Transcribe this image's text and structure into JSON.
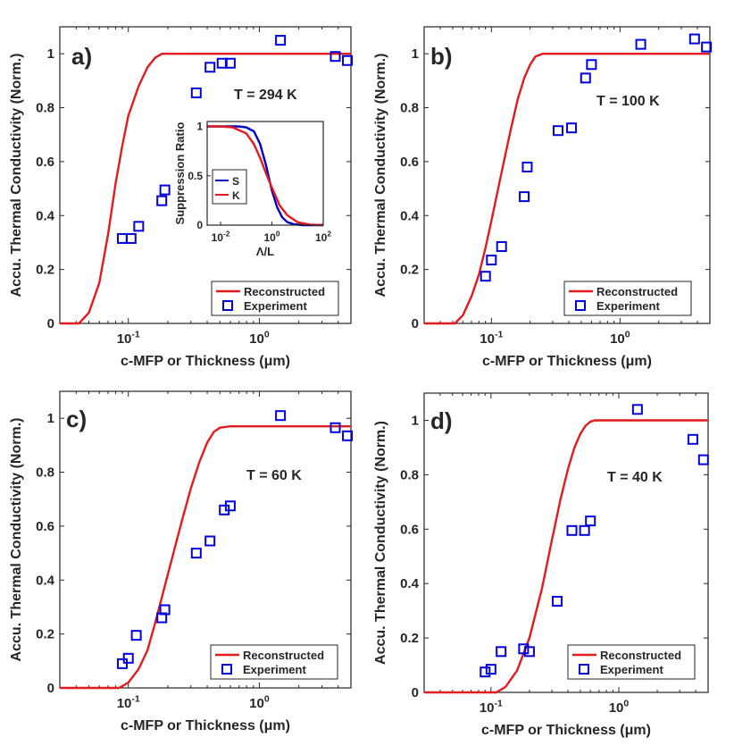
{
  "chart_data": [
    {
      "type": "scatter",
      "panel_label": "a)",
      "annotation": "T = 294 K",
      "xlabel": "c-MFP or Thickness (μm)",
      "ylabel": "Accu. Thermal Conductivity (Norm.)",
      "xscale": "log",
      "xlim": [
        0.03,
        5.0
      ],
      "ylim": [
        0,
        1.1
      ],
      "yticks": [
        "0",
        "0.2",
        "0.4",
        "0.6",
        "0.8",
        "1"
      ],
      "xticks": [
        {
          "base": "10",
          "exp": "-1"
        },
        {
          "base": "10",
          "exp": "0"
        }
      ],
      "legend": [
        "Reconstructed",
        "Experiment"
      ],
      "series": [
        {
          "name": "Reconstructed",
          "kind": "line",
          "color": "#e41a1c",
          "x": [
            0.03,
            0.042,
            0.05,
            0.06,
            0.07,
            0.08,
            0.09,
            0.1,
            0.12,
            0.14,
            0.16,
            0.18,
            0.2,
            0.3,
            1.0,
            5.0
          ],
          "y": [
            0,
            0,
            0.04,
            0.15,
            0.33,
            0.52,
            0.66,
            0.77,
            0.88,
            0.95,
            0.985,
            1.0,
            1.0,
            1.0,
            1.0,
            1.0
          ]
        },
        {
          "name": "Experiment",
          "kind": "marker",
          "color": "#0000e0",
          "x": [
            0.09,
            0.105,
            0.12,
            0.18,
            0.19,
            0.33,
            0.42,
            0.52,
            0.6,
            1.45,
            3.8,
            4.7
          ],
          "y": [
            0.315,
            0.315,
            0.36,
            0.455,
            0.495,
            0.855,
            0.95,
            0.965,
            0.965,
            1.05,
            0.99,
            0.975
          ]
        }
      ],
      "inset": {
        "type": "line",
        "xlabel": "Λ/L",
        "ylabel": "Suppression Ratio",
        "xscale": "log",
        "xlim": [
          0.003,
          100
        ],
        "ylim": [
          0,
          1.05
        ],
        "yticks": [
          "0",
          "0.5",
          "1"
        ],
        "xticks": [
          {
            "base": "10",
            "exp": "-2"
          },
          {
            "base": "10",
            "exp": "0"
          },
          {
            "base": "10",
            "exp": "2"
          }
        ],
        "legend": [
          "S",
          "K"
        ],
        "series": [
          {
            "name": "S",
            "color": "#0000c8",
            "x": [
              0.003,
              0.05,
              0.1,
              0.2,
              0.35,
              0.6,
              1,
              1.6,
              2.5,
              4,
              7,
              15,
              100
            ],
            "y": [
              1,
              1,
              0.99,
              0.95,
              0.82,
              0.6,
              0.35,
              0.18,
              0.08,
              0.03,
              0.01,
              0,
              0
            ]
          },
          {
            "name": "K",
            "color": "#e41a1c",
            "x": [
              0.003,
              0.01,
              0.03,
              0.1,
              0.2,
              0.35,
              0.6,
              1,
              2,
              4,
              10,
              30,
              100
            ],
            "y": [
              1,
              1,
              0.99,
              0.93,
              0.82,
              0.68,
              0.52,
              0.38,
              0.2,
              0.1,
              0.03,
              0.005,
              0
            ]
          }
        ]
      }
    },
    {
      "type": "scatter",
      "panel_label": "b)",
      "annotation": "T = 100 K",
      "xlabel": "c-MFP or Thickness (μm)",
      "ylabel": "Accu. Thermal Conductivity (Norm.)",
      "xscale": "log",
      "xlim": [
        0.03,
        5.0
      ],
      "ylim": [
        0,
        1.1
      ],
      "yticks": [
        "0",
        "0.2",
        "0.4",
        "0.6",
        "0.8",
        "1"
      ],
      "xticks": [
        {
          "base": "10",
          "exp": "-1"
        },
        {
          "base": "10",
          "exp": "0"
        }
      ],
      "legend": [
        "Reconstructed",
        "Experiment"
      ],
      "series": [
        {
          "name": "Reconstructed",
          "kind": "line",
          "color": "#e41a1c",
          "x": [
            0.03,
            0.052,
            0.06,
            0.07,
            0.08,
            0.09,
            0.1,
            0.12,
            0.14,
            0.16,
            0.18,
            0.2,
            0.22,
            0.25,
            1.0,
            5.0
          ],
          "y": [
            0,
            0,
            0.03,
            0.1,
            0.18,
            0.28,
            0.38,
            0.56,
            0.71,
            0.83,
            0.91,
            0.96,
            0.99,
            1.0,
            1.0,
            1.0
          ]
        },
        {
          "name": "Experiment",
          "kind": "marker",
          "color": "#0000e0",
          "x": [
            0.09,
            0.1,
            0.12,
            0.18,
            0.19,
            0.33,
            0.42,
            0.54,
            0.6,
            1.45,
            3.8,
            4.7
          ],
          "y": [
            0.175,
            0.235,
            0.285,
            0.47,
            0.58,
            0.715,
            0.725,
            0.91,
            0.96,
            1.035,
            1.055,
            1.025
          ]
        }
      ]
    },
    {
      "type": "scatter",
      "panel_label": "c)",
      "annotation": "T = 60 K",
      "xlabel": "c-MFP or Thickness (μm)",
      "ylabel": "Accu. Thermal Conductivity (Norm.)",
      "xscale": "log",
      "xlim": [
        0.03,
        5.0
      ],
      "ylim": [
        0,
        1.1
      ],
      "yticks": [
        "0",
        "0.2",
        "0.4",
        "0.6",
        "0.8",
        "1"
      ],
      "xticks": [
        {
          "base": "10",
          "exp": "-1"
        },
        {
          "base": "10",
          "exp": "0"
        }
      ],
      "legend": [
        "Reconstructed",
        "Experiment"
      ],
      "series": [
        {
          "name": "Reconstructed",
          "kind": "line",
          "color": "#e41a1c",
          "x": [
            0.03,
            0.085,
            0.1,
            0.12,
            0.14,
            0.16,
            0.2,
            0.25,
            0.3,
            0.35,
            0.4,
            0.45,
            0.5,
            0.6,
            1.0,
            5.0
          ],
          "y": [
            0,
            0,
            0.02,
            0.07,
            0.14,
            0.24,
            0.42,
            0.6,
            0.74,
            0.84,
            0.91,
            0.95,
            0.965,
            0.97,
            0.97,
            0.97
          ]
        },
        {
          "name": "Experiment",
          "kind": "marker",
          "color": "#0000e0",
          "x": [
            0.09,
            0.1,
            0.115,
            0.18,
            0.19,
            0.33,
            0.42,
            0.54,
            0.6,
            1.45,
            3.8,
            4.7
          ],
          "y": [
            0.09,
            0.11,
            0.195,
            0.26,
            0.29,
            0.5,
            0.545,
            0.66,
            0.675,
            1.01,
            0.965,
            0.935
          ]
        }
      ]
    },
    {
      "type": "scatter",
      "panel_label": "d)",
      "annotation": "T = 40 K",
      "xlabel": "c-MFP or Thickness (μm)",
      "ylabel": "Accu. Thermal Conductivity (Norm.)",
      "xscale": "log",
      "xlim": [
        0.03,
        5.0
      ],
      "ylim": [
        0,
        1.1
      ],
      "yticks": [
        "0",
        "0.2",
        "0.4",
        "0.6",
        "0.8",
        "1"
      ],
      "xticks": [
        {
          "base": "10",
          "exp": "-1"
        },
        {
          "base": "10",
          "exp": "0"
        }
      ],
      "legend": [
        "Reconstructed",
        "Experiment"
      ],
      "series": [
        {
          "name": "Reconstructed",
          "kind": "line",
          "color": "#e41a1c",
          "x": [
            0.03,
            0.11,
            0.13,
            0.16,
            0.2,
            0.25,
            0.3,
            0.35,
            0.4,
            0.45,
            0.5,
            0.55,
            0.6,
            0.65,
            1.0,
            5.0
          ],
          "y": [
            0,
            0,
            0.02,
            0.08,
            0.2,
            0.38,
            0.56,
            0.71,
            0.82,
            0.9,
            0.95,
            0.98,
            0.995,
            1.0,
            1.0,
            1.0
          ]
        },
        {
          "name": "Experiment",
          "kind": "marker",
          "color": "#0000e0",
          "x": [
            0.09,
            0.1,
            0.12,
            0.18,
            0.2,
            0.33,
            0.43,
            0.54,
            0.6,
            1.4,
            3.8,
            4.6
          ],
          "y": [
            0.075,
            0.085,
            0.15,
            0.16,
            0.15,
            0.335,
            0.595,
            0.595,
            0.63,
            1.04,
            0.93,
            0.855
          ]
        }
      ]
    }
  ]
}
